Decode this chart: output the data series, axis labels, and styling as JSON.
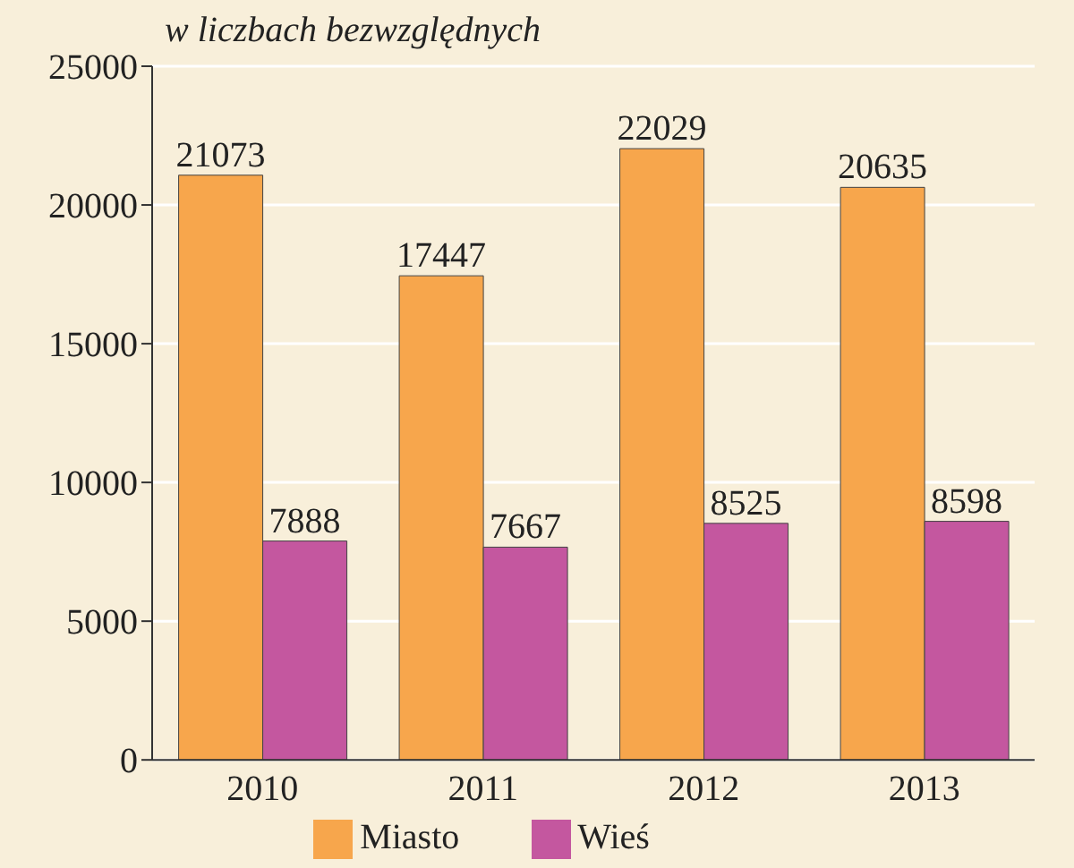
{
  "chart_data": {
    "type": "bar",
    "ylabel": "w liczbach bezwzględnych",
    "categories": [
      "2010",
      "2011",
      "2012",
      "2013"
    ],
    "series": [
      {
        "name": "Miasto",
        "color": "#f7a64c",
        "values": [
          21073,
          17447,
          22029,
          20635
        ]
      },
      {
        "name": "Wieś",
        "color": "#c4579f",
        "values": [
          7888,
          7667,
          8525,
          8598
        ]
      }
    ],
    "ylim": [
      0,
      25000
    ],
    "yticks": [
      0,
      5000,
      10000,
      15000,
      20000,
      25000
    ],
    "grid": "y",
    "legend": "bottom",
    "data_labels": true
  }
}
